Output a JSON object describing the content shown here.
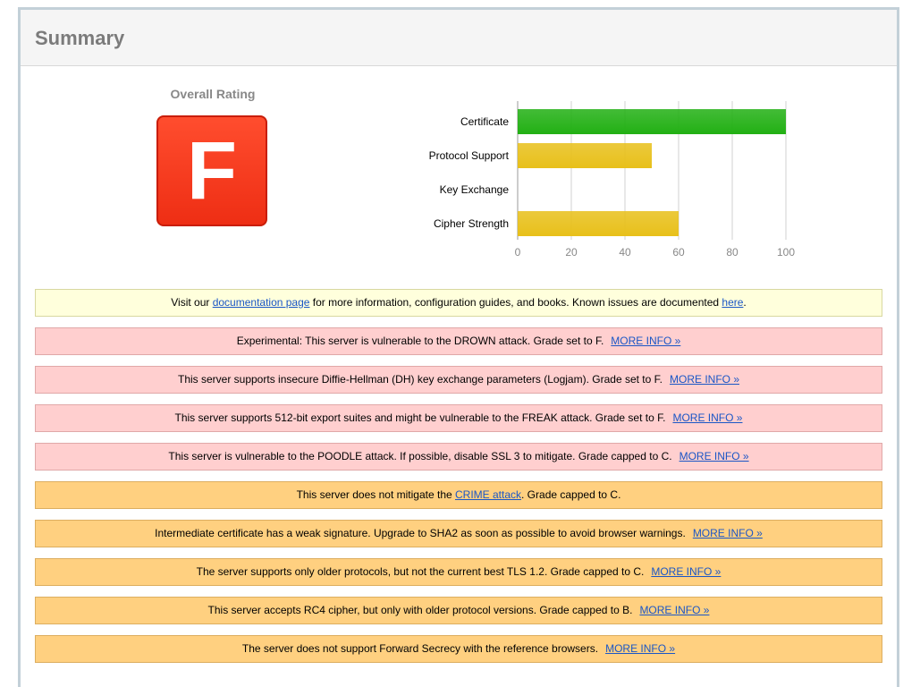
{
  "page": {
    "title": "Summary"
  },
  "rating": {
    "label": "Overall Rating",
    "grade": "F",
    "grade_color": "#ef3418"
  },
  "chart_data": {
    "type": "bar",
    "orientation": "horizontal",
    "categories": [
      "Certificate",
      "Protocol Support",
      "Key Exchange",
      "Cipher Strength"
    ],
    "values": [
      100,
      50,
      0,
      60
    ],
    "colors": [
      "#22b014",
      "#e8c01a",
      "#e8c01a",
      "#e8c01a"
    ],
    "xlim": [
      0,
      100
    ],
    "xticks": [
      "0",
      "20",
      "40",
      "60",
      "80",
      "100"
    ],
    "grid": true
  },
  "notices": [
    {
      "style": "yellow",
      "parts": [
        {
          "text": "Visit our "
        },
        {
          "text": "documentation page",
          "link": true
        },
        {
          "text": " for more information, configuration guides, and books. Known issues are documented "
        },
        {
          "text": "here",
          "link": true
        },
        {
          "text": "."
        }
      ]
    },
    {
      "style": "red",
      "parts": [
        {
          "text": "Experimental: This server is vulnerable to the DROWN attack. Grade set to F."
        }
      ],
      "more": "MORE INFO »"
    },
    {
      "style": "red",
      "parts": [
        {
          "text": "This server supports insecure Diffie-Hellman (DH) key exchange parameters (Logjam). Grade set to F."
        }
      ],
      "more": "MORE INFO »"
    },
    {
      "style": "red",
      "parts": [
        {
          "text": "This server supports 512-bit export suites and might be vulnerable to the FREAK attack. Grade set to F."
        }
      ],
      "more": "MORE INFO »"
    },
    {
      "style": "red",
      "parts": [
        {
          "text": "This server is vulnerable to the POODLE attack. If possible, disable SSL 3 to mitigate. Grade capped to C."
        }
      ],
      "more": "MORE INFO »"
    },
    {
      "style": "orange",
      "parts": [
        {
          "text": "This server does not mitigate the "
        },
        {
          "text": "CRIME attack",
          "link": true
        },
        {
          "text": ". Grade capped to C."
        }
      ]
    },
    {
      "style": "orange",
      "parts": [
        {
          "text": "Intermediate certificate has a weak signature. Upgrade to SHA2 as soon as possible to avoid browser warnings."
        }
      ],
      "more": "MORE INFO »"
    },
    {
      "style": "orange",
      "parts": [
        {
          "text": "The server supports only older protocols, but not the current best TLS 1.2. Grade capped to C."
        }
      ],
      "more": "MORE INFO »"
    },
    {
      "style": "orange",
      "parts": [
        {
          "text": "This server accepts RC4 cipher, but only with older protocol versions. Grade capped to B."
        }
      ],
      "more": "MORE INFO »"
    },
    {
      "style": "orange",
      "parts": [
        {
          "text": "The server does not support Forward Secrecy with the reference browsers."
        }
      ],
      "more": "MORE INFO »"
    }
  ]
}
